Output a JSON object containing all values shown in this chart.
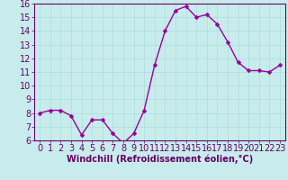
{
  "x": [
    0,
    1,
    2,
    3,
    4,
    5,
    6,
    7,
    8,
    9,
    10,
    11,
    12,
    13,
    14,
    15,
    16,
    17,
    18,
    19,
    20,
    21,
    22,
    23
  ],
  "y": [
    8.0,
    8.2,
    8.2,
    7.8,
    6.4,
    7.5,
    7.5,
    6.5,
    5.8,
    6.5,
    8.2,
    11.5,
    14.0,
    15.5,
    15.8,
    15.0,
    15.2,
    14.5,
    13.2,
    11.7,
    11.1,
    11.1,
    11.0,
    11.5
  ],
  "line_color": "#990099",
  "marker": "D",
  "marker_size": 2.5,
  "bg_color": "#c8ecec",
  "grid_color": "#aadddd",
  "xlabel": "Windchill (Refroidissement éolien,°C)",
  "xlabel_color": "#660066",
  "xlabel_fontsize": 7,
  "tick_label_fontsize": 7,
  "ylim": [
    6,
    16
  ],
  "xlim": [
    -0.5,
    23.5
  ],
  "yticks": [
    6,
    7,
    8,
    9,
    10,
    11,
    12,
    13,
    14,
    15,
    16
  ],
  "xticks": [
    0,
    1,
    2,
    3,
    4,
    5,
    6,
    7,
    8,
    9,
    10,
    11,
    12,
    13,
    14,
    15,
    16,
    17,
    18,
    19,
    20,
    21,
    22,
    23
  ],
  "tick_color": "#660066",
  "spine_color": "#660066",
  "linewidth": 1.0
}
